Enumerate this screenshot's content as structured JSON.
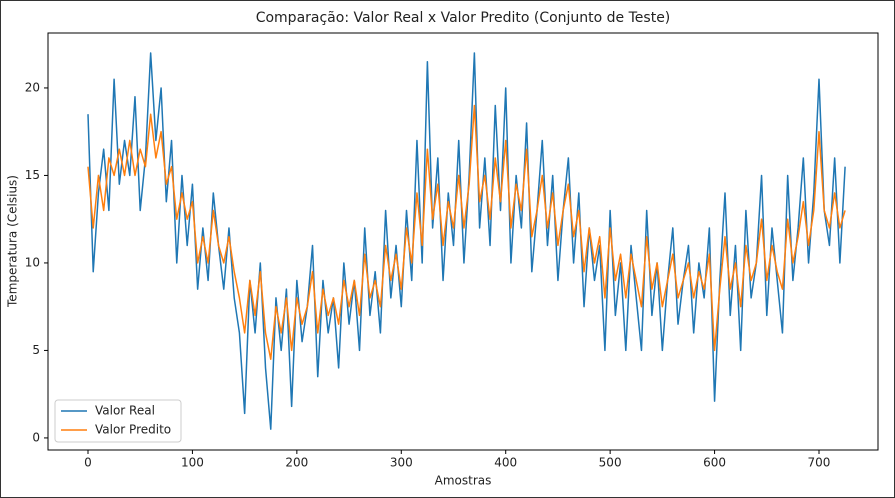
{
  "chart_data": {
    "type": "line",
    "title": "Comparação: Valor Real x Valor Predito (Conjunto de Teste)",
    "x_label": "Amostras",
    "y_label": "Temperatura (Celsius)",
    "x": [
      0,
      5,
      10,
      15,
      20,
      25,
      30,
      35,
      40,
      45,
      50,
      55,
      60,
      65,
      70,
      75,
      80,
      85,
      90,
      95,
      100,
      105,
      110,
      115,
      120,
      125,
      130,
      135,
      140,
      145,
      150,
      155,
      160,
      165,
      170,
      175,
      180,
      185,
      190,
      195,
      200,
      205,
      210,
      215,
      220,
      225,
      230,
      235,
      240,
      245,
      250,
      255,
      260,
      265,
      270,
      275,
      280,
      285,
      290,
      295,
      300,
      305,
      310,
      315,
      320,
      325,
      330,
      335,
      340,
      345,
      350,
      355,
      360,
      365,
      370,
      375,
      380,
      385,
      390,
      395,
      400,
      405,
      410,
      415,
      420,
      425,
      430,
      435,
      440,
      445,
      450,
      455,
      460,
      465,
      470,
      475,
      480,
      485,
      490,
      495,
      500,
      505,
      510,
      515,
      520,
      525,
      530,
      535,
      540,
      545,
      550,
      555,
      560,
      565,
      570,
      575,
      580,
      585,
      590,
      595,
      600,
      605,
      610,
      615,
      620,
      625,
      630,
      635,
      640,
      645,
      650,
      655,
      660,
      665,
      670,
      675,
      680,
      685,
      690,
      695,
      700,
      705,
      710,
      715,
      720,
      725
    ],
    "series": [
      {
        "name": "Valor Real",
        "color": "#1f77b4",
        "values": [
          18.5,
          9.5,
          14,
          16.5,
          13,
          20.5,
          14.5,
          17,
          15,
          19.5,
          13,
          16,
          22,
          17,
          20,
          13.5,
          17,
          10,
          15,
          11,
          14.5,
          8.5,
          12,
          9,
          14,
          11,
          8.5,
          12,
          8,
          6,
          1.4,
          9,
          6,
          10,
          4,
          0.5,
          8,
          5,
          8.5,
          1.8,
          9,
          5.5,
          7.5,
          11,
          3.5,
          9,
          6,
          8,
          4,
          10,
          6.5,
          9,
          5,
          12,
          7,
          9.5,
          6,
          13,
          8,
          11,
          7.5,
          13,
          9,
          17,
          10,
          21.5,
          12,
          16,
          9,
          14,
          11,
          17,
          10,
          15,
          22,
          12,
          16,
          11,
          19,
          13,
          20,
          10,
          15,
          12,
          18,
          9.5,
          13,
          17,
          11,
          15,
          9,
          13,
          16,
          10,
          14,
          7.5,
          12,
          9,
          11,
          5,
          13,
          7,
          10,
          5,
          11,
          8,
          5,
          13,
          7,
          10,
          5,
          9,
          12,
          6.5,
          9,
          11,
          6,
          10,
          8,
          12,
          2.1,
          9,
          14,
          7,
          11,
          5,
          13,
          8,
          10,
          15,
          7,
          12,
          9,
          6,
          15,
          9,
          12,
          16,
          10,
          14,
          20.5,
          13,
          11,
          16,
          10,
          15.5
        ]
      },
      {
        "name": "Valor Predito",
        "color": "#ff7f0e",
        "values": [
          15.5,
          12,
          15,
          13,
          16,
          15,
          16.5,
          15,
          17,
          15,
          16.5,
          15.5,
          18.5,
          16,
          17.5,
          14.5,
          15.5,
          12.5,
          14,
          12.5,
          13.5,
          10,
          11.5,
          10,
          13,
          11,
          10,
          11.5,
          9.5,
          8,
          6,
          9,
          7,
          9.5,
          6,
          4.5,
          7.5,
          6,
          8,
          5,
          8,
          6.5,
          7.5,
          9.5,
          6,
          8.5,
          7,
          8,
          6.5,
          9,
          7.5,
          9,
          7,
          10.5,
          8,
          9,
          7.5,
          11,
          9,
          10.5,
          8.5,
          12,
          10,
          14,
          11,
          16.5,
          12.5,
          14.5,
          11,
          13.5,
          12,
          15,
          12,
          14.5,
          19,
          13.5,
          15,
          12.5,
          16,
          13.5,
          17,
          12,
          14.5,
          13,
          16.5,
          11.5,
          13,
          15,
          12,
          14,
          11,
          13,
          14.5,
          11.5,
          13,
          9.5,
          12,
          10,
          11.5,
          8,
          12,
          9,
          10.5,
          8,
          10.5,
          9,
          7.5,
          11.5,
          8.5,
          10,
          7.5,
          9,
          10.5,
          8,
          9,
          10,
          8,
          9.5,
          8.5,
          10.5,
          5,
          8.5,
          11.5,
          8.5,
          10,
          7.5,
          11,
          9,
          10,
          12.5,
          9,
          11,
          9.5,
          8.5,
          12.5,
          10,
          11.5,
          13.5,
          11,
          13,
          17.5,
          13,
          12,
          14,
          12,
          13
        ]
      }
    ],
    "xlim": [
      -38.3,
      756.5
    ],
    "ylim": [
      -0.69,
      23.14
    ],
    "xticks": [
      0,
      100,
      200,
      300,
      400,
      500,
      600,
      700
    ],
    "yticks": [
      0,
      5,
      10,
      15,
      20
    ],
    "grid": false,
    "legend": "lower left"
  }
}
